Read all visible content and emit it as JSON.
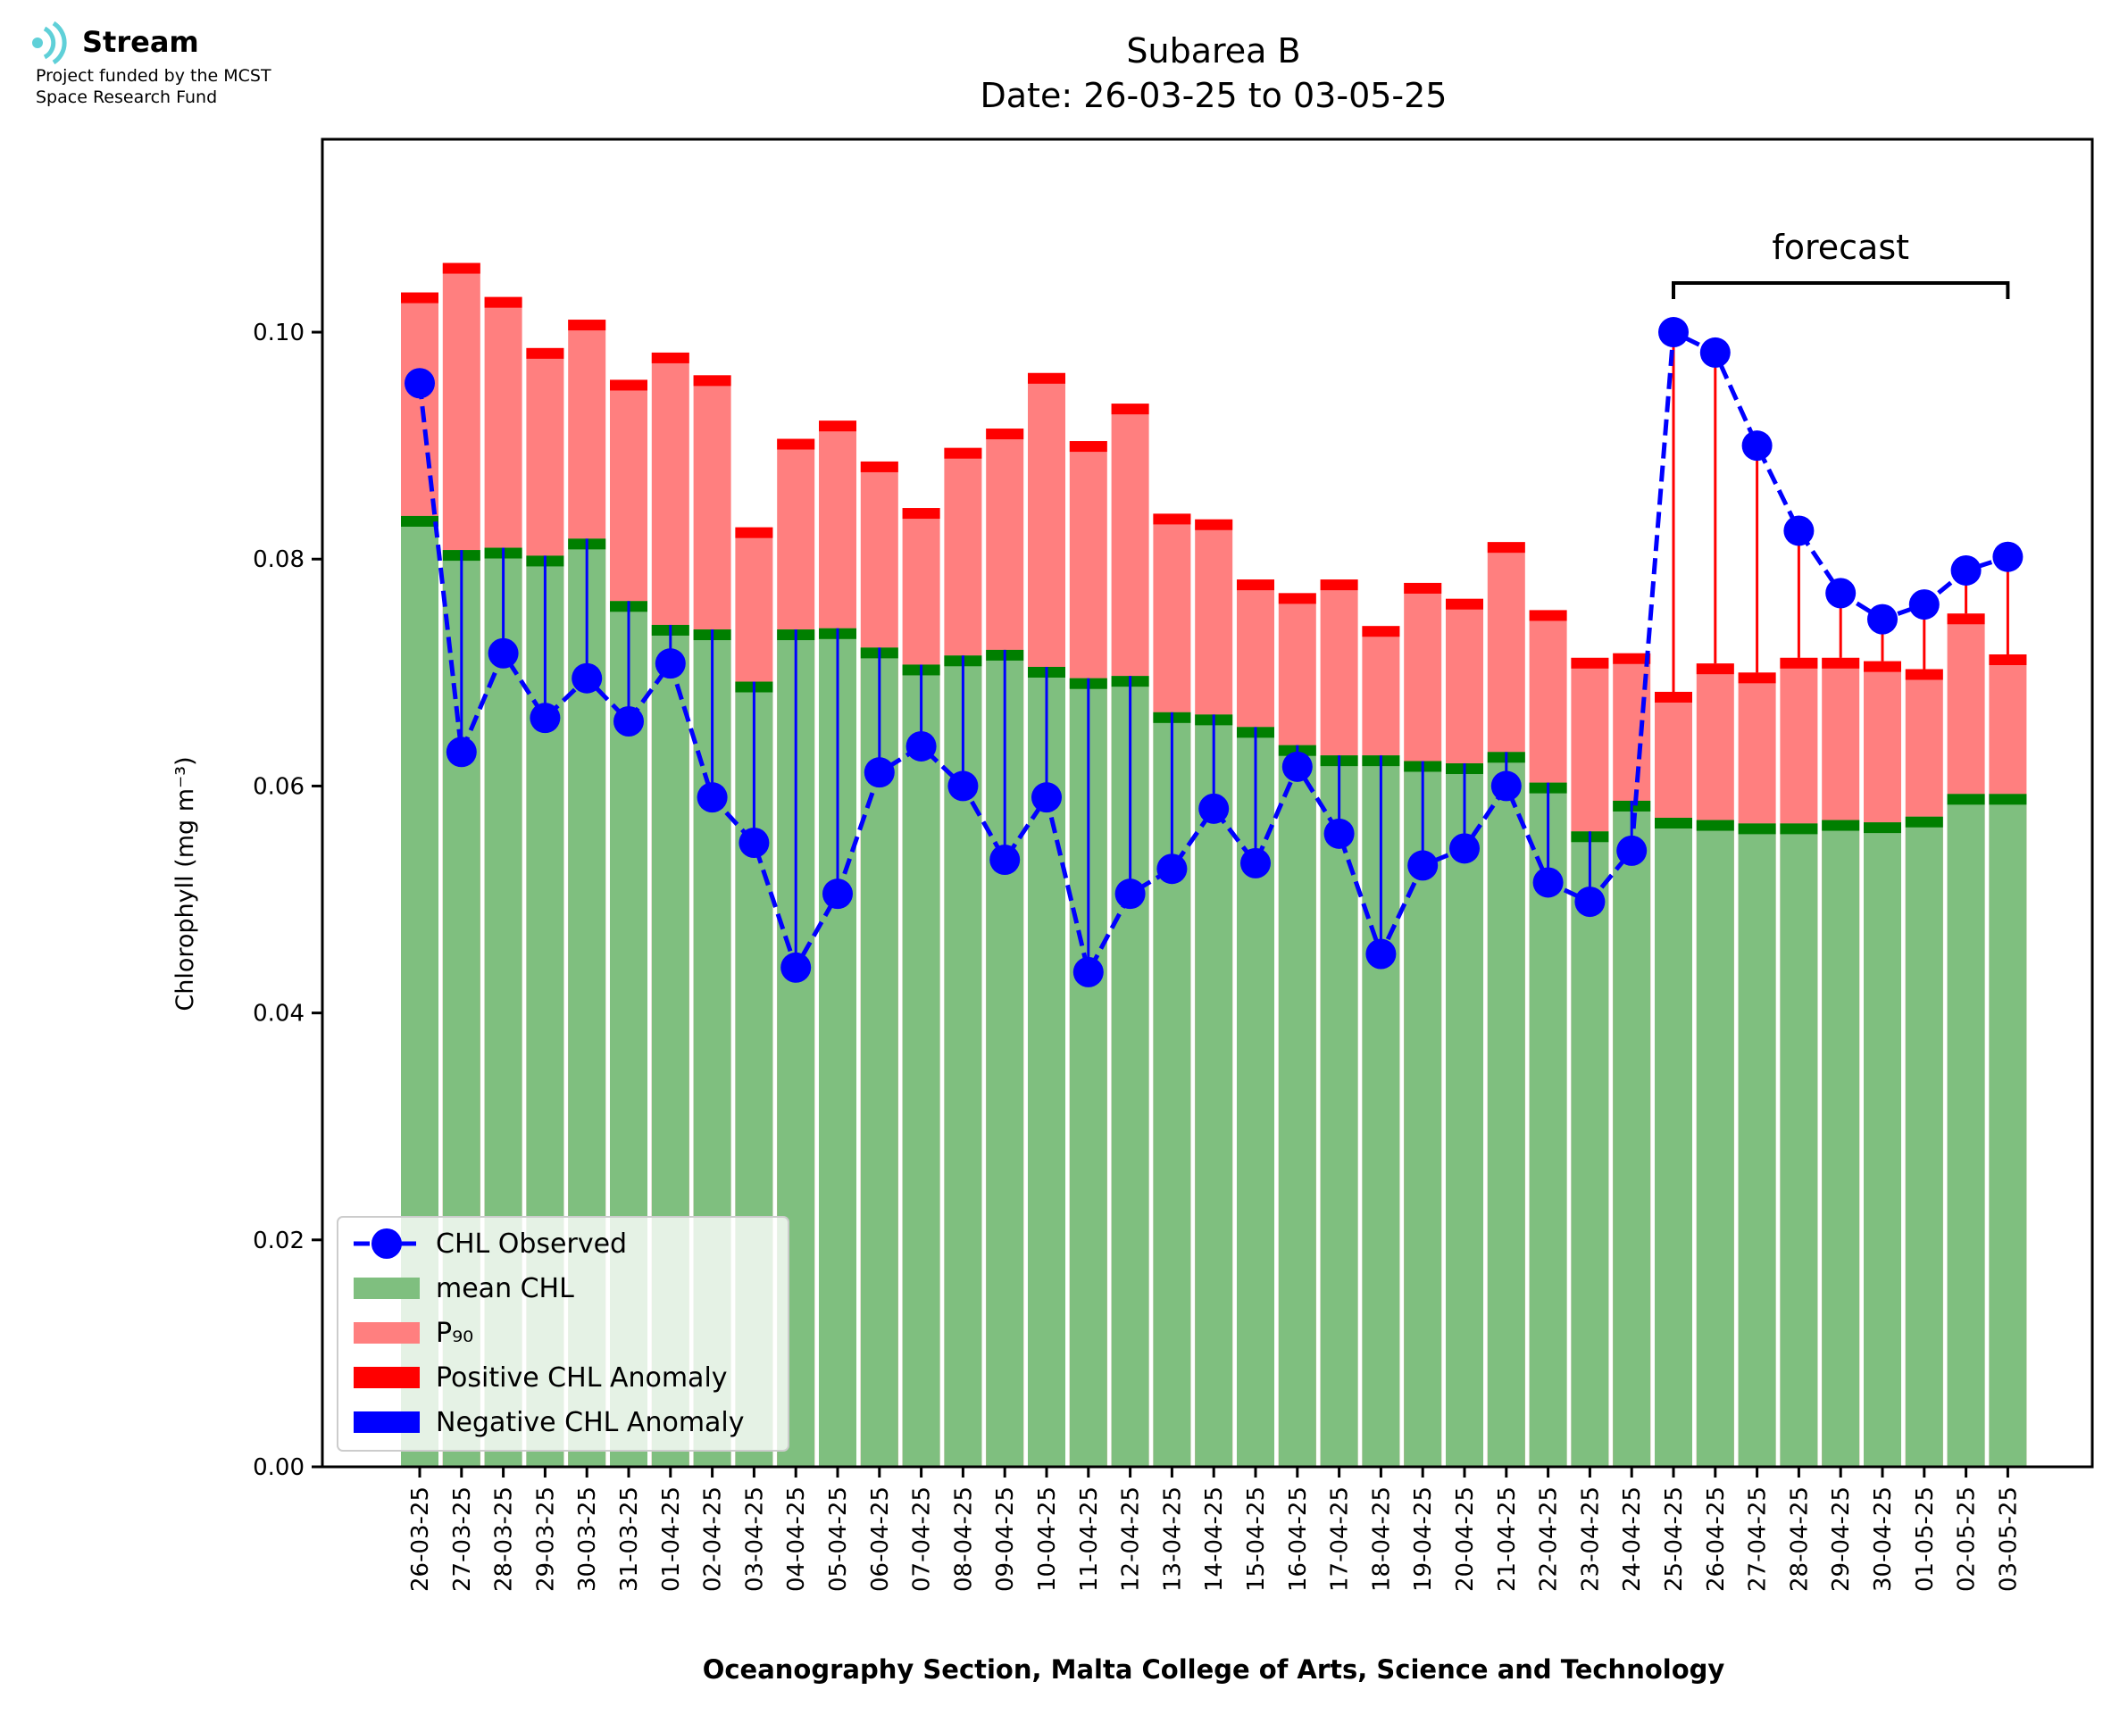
{
  "logo": {
    "name": "Stream",
    "line1": "Project funded by the MCST",
    "line2": "Space Research Fund"
  },
  "chart_data": {
    "type": "bar",
    "title": "Subarea B",
    "subtitle": "Date: 26-03-25 to 03-05-25",
    "xlabel": "Oceanography Section, Malta College of Arts, Science and Technology",
    "ylabel": "Chlorophyll (mg m⁻³)",
    "ylim": [
      0,
      0.117
    ],
    "yticks": [
      "0.00",
      "0.02",
      "0.04",
      "0.06",
      "0.08",
      "0.10"
    ],
    "grid": false,
    "legend_position": "lower-left",
    "annotation": {
      "text": "forecast",
      "start": "25-04-25",
      "end": "03-05-25"
    },
    "categories": [
      "26-03-25",
      "27-03-25",
      "28-03-25",
      "29-03-25",
      "30-03-25",
      "31-03-25",
      "01-04-25",
      "02-04-25",
      "03-04-25",
      "04-04-25",
      "05-04-25",
      "06-04-25",
      "07-04-25",
      "08-04-25",
      "09-04-25",
      "10-04-25",
      "11-04-25",
      "12-04-25",
      "13-04-25",
      "14-04-25",
      "15-04-25",
      "16-04-25",
      "17-04-25",
      "18-04-25",
      "19-04-25",
      "20-04-25",
      "21-04-25",
      "22-04-25",
      "23-04-25",
      "24-04-25",
      "25-04-25",
      "26-04-25",
      "27-04-25",
      "28-04-25",
      "29-04-25",
      "30-04-25",
      "01-05-25",
      "02-05-25",
      "03-05-25"
    ],
    "series": [
      {
        "name": "CHL Observed",
        "color": "#0000ff",
        "style": "dashed-line-with-markers",
        "values": [
          0.0955,
          0.063,
          0.0717,
          0.066,
          0.0695,
          0.0657,
          0.0708,
          0.059,
          0.055,
          0.044,
          0.0505,
          0.0612,
          0.0635,
          0.06,
          0.0535,
          0.059,
          0.0436,
          0.0505,
          0.0527,
          0.058,
          0.0532,
          0.0617,
          0.0558,
          0.0452,
          0.053,
          0.0545,
          0.06,
          0.0515,
          0.0498,
          0.0543,
          0.1,
          0.0982,
          0.09,
          0.0825,
          0.077,
          0.0747,
          0.076,
          0.079,
          0.0802
        ]
      },
      {
        "name": "mean CHL",
        "color": "#7fbf7f",
        "values": [
          0.0838,
          0.0808,
          0.081,
          0.0803,
          0.0818,
          0.0763,
          0.0742,
          0.0738,
          0.0692,
          0.0738,
          0.0739,
          0.0722,
          0.0707,
          0.0715,
          0.072,
          0.0705,
          0.0695,
          0.0697,
          0.0665,
          0.0663,
          0.0652,
          0.0636,
          0.0627,
          0.0627,
          0.0622,
          0.062,
          0.063,
          0.0603,
          0.056,
          0.0587,
          0.0572,
          0.057,
          0.0567,
          0.0567,
          0.057,
          0.0568,
          0.0573,
          0.0593,
          0.0593
        ]
      },
      {
        "name": "P₉₀",
        "color": "#ff7f7f",
        "values": [
          0.1035,
          0.1061,
          0.1031,
          0.0986,
          0.1011,
          0.0958,
          0.0982,
          0.0962,
          0.0828,
          0.0906,
          0.0922,
          0.0886,
          0.0845,
          0.0898,
          0.0915,
          0.0964,
          0.0904,
          0.0937,
          0.084,
          0.0835,
          0.0782,
          0.077,
          0.0782,
          0.0741,
          0.0779,
          0.0765,
          0.0815,
          0.0755,
          0.0713,
          0.0717,
          0.0683,
          0.0708,
          0.07,
          0.0713,
          0.0713,
          0.071,
          0.0703,
          0.0752,
          0.0716
        ]
      },
      {
        "name": "Positive CHL Anomaly",
        "color": "#ff0000"
      },
      {
        "name": "Negative CHL Anomaly",
        "color": "#0000ff"
      }
    ],
    "colors": {
      "mean_cap": "#007f00",
      "p90_cap": "#ff0000",
      "positive": "#ff0000",
      "negative": "#0000ff",
      "observed": "#0000ff"
    }
  }
}
